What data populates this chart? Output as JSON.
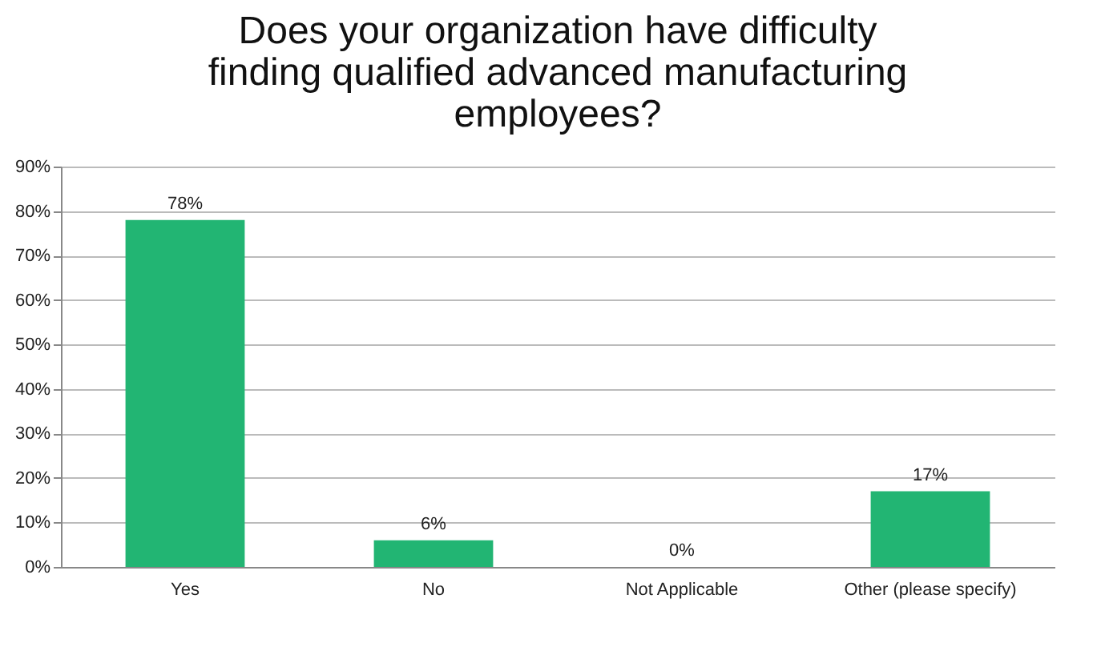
{
  "chart_data": {
    "type": "bar",
    "title": "Does your organization have difficulty finding qualified advanced manufacturing employees?",
    "categories": [
      "Yes",
      "No",
      "Not Applicable",
      "Other (please specify)"
    ],
    "values": [
      78,
      6,
      0,
      17
    ],
    "value_labels": [
      "78%",
      "6%",
      "0%",
      "17%"
    ],
    "color": "#22b573",
    "ylim": [
      0,
      90
    ],
    "yticks": [
      {
        "value": 0,
        "label": "0%"
      },
      {
        "value": 10,
        "label": "10%"
      },
      {
        "value": 20,
        "label": "20%"
      },
      {
        "value": 30,
        "label": "30%"
      },
      {
        "value": 40,
        "label": "40%"
      },
      {
        "value": 50,
        "label": "50%"
      },
      {
        "value": 60,
        "label": "60%"
      },
      {
        "value": 70,
        "label": "70%"
      },
      {
        "value": 80,
        "label": "80%"
      },
      {
        "value": 90,
        "label": "90%"
      }
    ],
    "grid": "y"
  }
}
